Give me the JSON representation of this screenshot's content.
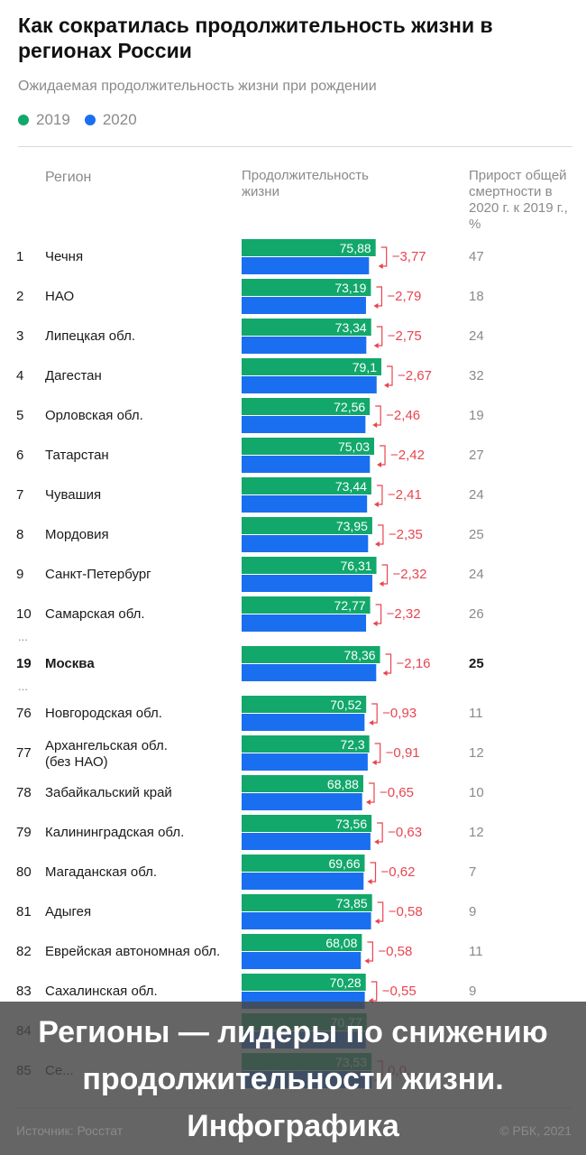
{
  "header": {
    "title": "Как сократилась продолжительность жизни в регионах России",
    "subtitle": "Ожидаемая продолжительность жизни при рождении"
  },
  "legend": [
    {
      "label": "2019",
      "color": "#12a86b"
    },
    {
      "label": "2020",
      "color": "#1a6ff0"
    }
  ],
  "columns": {
    "region": "Регион",
    "life": "Продолжительность жизни",
    "growth": "Прирост общей смертности в 2020 г. к 2019 г., %"
  },
  "colors": {
    "green": "#12a86b",
    "blue": "#1a6ff0",
    "delta": "#e8454f",
    "muted": "#8a8a8a"
  },
  "ellipsis": "...",
  "chart_data": {
    "type": "bar",
    "title": "Как сократилась продолжительность жизни в регионах России",
    "subtitle": "Ожидаемая продолжительность жизни при рождении",
    "series": [
      {
        "name": "2019"
      },
      {
        "name": "2020"
      }
    ],
    "rows": [
      {
        "rank": "1",
        "region": "Чечня",
        "v2019": 75.88,
        "v2019_label": "75,88",
        "delta": "−3,77",
        "growth": "47",
        "v2020": 72.11
      },
      {
        "rank": "2",
        "region": "НАО",
        "v2019": 73.19,
        "v2019_label": "73,19",
        "delta": "−2,79",
        "growth": "18",
        "v2020": 70.4
      },
      {
        "rank": "3",
        "region": "Липецкая обл.",
        "v2019": 73.34,
        "v2019_label": "73,34",
        "delta": "−2,75",
        "growth": "24",
        "v2020": 70.59
      },
      {
        "rank": "4",
        "region": "Дагестан",
        "v2019": 79.1,
        "v2019_label": "79,1",
        "delta": "−2,67",
        "growth": "32",
        "v2020": 76.43
      },
      {
        "rank": "5",
        "region": "Орловская обл.",
        "v2019": 72.56,
        "v2019_label": "72,56",
        "delta": "−2,46",
        "growth": "19",
        "v2020": 70.1
      },
      {
        "rank": "6",
        "region": "Татарстан",
        "v2019": 75.03,
        "v2019_label": "75,03",
        "delta": "−2,42",
        "growth": "27",
        "v2020": 72.61
      },
      {
        "rank": "7",
        "region": "Чувашия",
        "v2019": 73.44,
        "v2019_label": "73,44",
        "delta": "−2,41",
        "growth": "24",
        "v2020": 71.03
      },
      {
        "rank": "8",
        "region": "Мордовия",
        "v2019": 73.95,
        "v2019_label": "73,95",
        "delta": "−2,35",
        "growth": "25",
        "v2020": 71.6
      },
      {
        "rank": "9",
        "region": "Санкт-Петербург",
        "v2019": 76.31,
        "v2019_label": "76,31",
        "delta": "−2,32",
        "growth": "24",
        "v2020": 73.99
      },
      {
        "rank": "10",
        "region": "Самарская обл.",
        "v2019": 72.77,
        "v2019_label": "72,77",
        "delta": "−2,32",
        "growth": "26",
        "v2020": 70.45
      },
      {
        "gap": true
      },
      {
        "rank": "19",
        "region": "Москва",
        "v2019": 78.36,
        "v2019_label": "78,36",
        "delta": "−2,16",
        "growth": "25",
        "v2020": 76.2,
        "bold": true
      },
      {
        "gap": true
      },
      {
        "rank": "76",
        "region": "Новгородская обл.",
        "v2019": 70.52,
        "v2019_label": "70,52",
        "delta": "−0,93",
        "growth": "11",
        "v2020": 69.59
      },
      {
        "rank": "77",
        "region": "Архангельская обл.\n(без НАО)",
        "v2019": 72.3,
        "v2019_label": "72,3",
        "delta": "−0,91",
        "growth": "12",
        "v2020": 71.39
      },
      {
        "rank": "78",
        "region": "Забайкальский край",
        "v2019": 68.88,
        "v2019_label": "68,88",
        "delta": "−0,65",
        "growth": "10",
        "v2020": 68.23
      },
      {
        "rank": "79",
        "region": "Калининградская обл.",
        "v2019": 73.56,
        "v2019_label": "73,56",
        "delta": "−0,63",
        "growth": "12",
        "v2020": 72.93
      },
      {
        "rank": "80",
        "region": "Магаданская обл.",
        "v2019": 69.66,
        "v2019_label": "69,66",
        "delta": "−0,62",
        "growth": "7",
        "v2020": 69.04
      },
      {
        "rank": "81",
        "region": "Адыгея",
        "v2019": 73.85,
        "v2019_label": "73,85",
        "delta": "−0,58",
        "growth": "9",
        "v2020": 73.27
      },
      {
        "rank": "82",
        "region": "Еврейская автономная обл.",
        "v2019": 68.08,
        "v2019_label": "68,08",
        "delta": "−0,58",
        "growth": "11",
        "v2020": 67.5
      },
      {
        "rank": "83",
        "region": "Сахалинская обл.",
        "v2019": 70.28,
        "v2019_label": "70,28",
        "delta": "−0,55",
        "growth": "9",
        "v2020": 69.73
      },
      {
        "rank": "84",
        "region": "",
        "v2019": 70.77,
        "v2019_label": "70,77",
        "delta": "",
        "growth": "",
        "v2020": 70.3
      },
      {
        "rank": "85",
        "region": "Се...",
        "v2019": 73.53,
        "v2019_label": "73,53",
        "delta": "0,0...",
        "growth": "",
        "v2020": 73.6
      }
    ]
  },
  "caption": "Регионы — лидеры по снижению\nпродолжительности жизни.\nИнфографика",
  "footer": {
    "source": "Источник: Росстат",
    "copyright": "© РБК, 2021"
  }
}
